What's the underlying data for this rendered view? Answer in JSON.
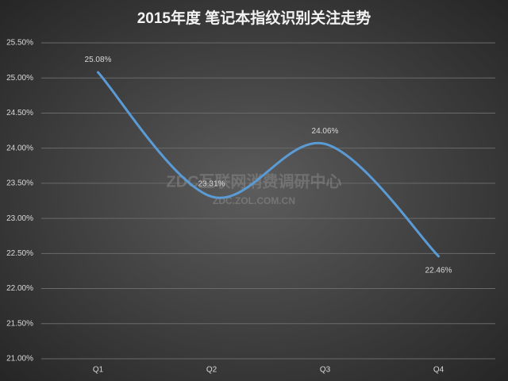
{
  "chart_data": {
    "type": "line",
    "title": "2015年度 笔记本指纹识别关注走势",
    "watermark": "ZDC互联网消费调研中心",
    "watermark_url": "ZDC.ZOL.COM.CN",
    "categories": [
      "Q1",
      "Q2",
      "Q3",
      "Q4"
    ],
    "values": [
      25.08,
      23.31,
      24.06,
      22.46
    ],
    "value_labels": [
      "25.08%",
      "23.31%",
      "24.06%",
      "22.46%"
    ],
    "color": "#5b9bd5",
    "ylim": [
      21,
      25.5
    ],
    "yticks": [
      {
        "value": 21,
        "label": "21.00%"
      },
      {
        "value": 21.5,
        "label": "21.50%"
      },
      {
        "value": 22,
        "label": "22.00%"
      },
      {
        "value": 22.5,
        "label": "22.50%"
      },
      {
        "value": 23,
        "label": "23.00%"
      },
      {
        "value": 23.5,
        "label": "23.50%"
      },
      {
        "value": 24,
        "label": "24.00%"
      },
      {
        "value": 24.5,
        "label": "24.50%"
      },
      {
        "value": 25,
        "label": "25.00%"
      },
      {
        "value": 25.5,
        "label": "25.50%"
      }
    ],
    "grid": true,
    "smooth": true
  }
}
